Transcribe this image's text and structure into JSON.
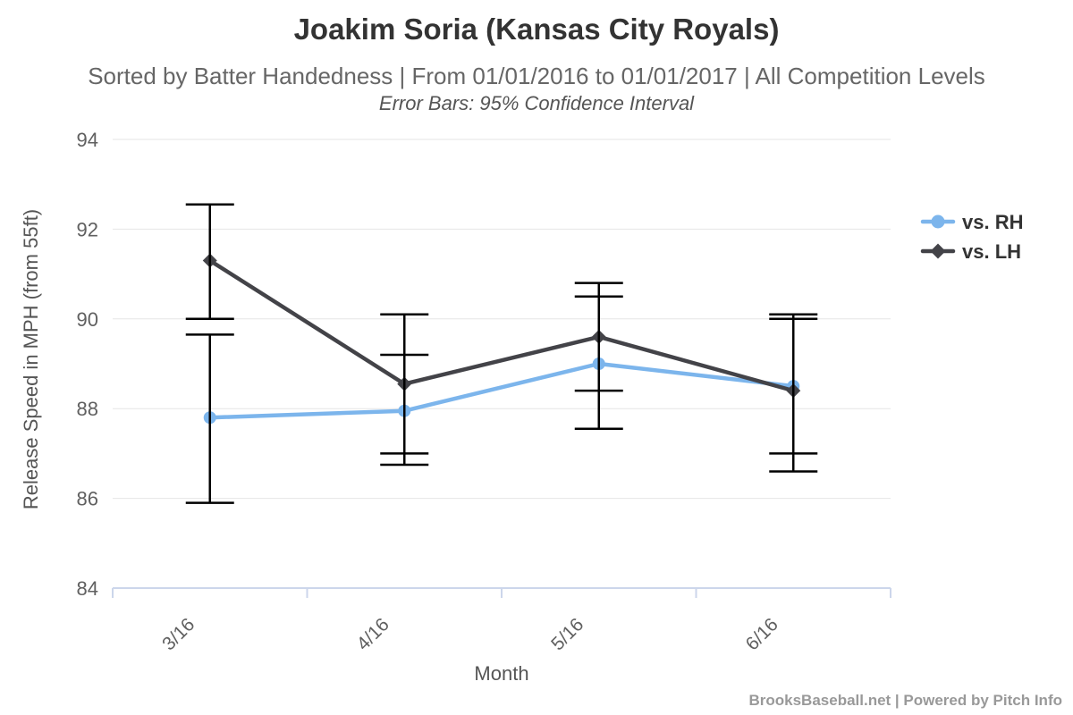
{
  "chart_data": {
    "type": "line",
    "title": "Joakim Soria (Kansas City Royals)",
    "subtitle": "Sorted by Batter Handedness | From 01/01/2016 to 01/01/2017 | All Competition Levels",
    "annotation": "Error Bars: 95% Confidence Interval",
    "xlabel": "Month",
    "ylabel": "Release Speed in MPH (from 55ft)",
    "categories": [
      "3/16",
      "4/16",
      "5/16",
      "6/16"
    ],
    "ylim": [
      84,
      94
    ],
    "yticks": [
      84,
      86,
      88,
      90,
      92,
      94
    ],
    "grid": true,
    "legend_position": "right",
    "series": [
      {
        "name": "vs. RH",
        "color": "#7cb5ec",
        "marker": "circle",
        "values": [
          87.8,
          87.95,
          89.0,
          88.5
        ],
        "ci_low": [
          85.9,
          86.75,
          87.55,
          87.0
        ],
        "ci_high": [
          89.65,
          89.2,
          90.5,
          90.0
        ]
      },
      {
        "name": "vs. LH",
        "color": "#434348",
        "marker": "diamond",
        "values": [
          91.3,
          88.55,
          89.6,
          88.4
        ],
        "ci_low": [
          90.0,
          87.0,
          88.4,
          86.6
        ],
        "ci_high": [
          92.55,
          90.1,
          90.8,
          90.1
        ]
      }
    ],
    "colors": {
      "error_bar": "#000000",
      "gridline": "#e6e6e6",
      "axis_line": "#ccd6eb",
      "tick_label": "#606060",
      "title": "#333333",
      "subtitle": "#666666",
      "legend_text": "#333333",
      "footer": "#999999"
    }
  },
  "footer": {
    "credit": "BrooksBaseball.net | Powered by Pitch Info"
  }
}
